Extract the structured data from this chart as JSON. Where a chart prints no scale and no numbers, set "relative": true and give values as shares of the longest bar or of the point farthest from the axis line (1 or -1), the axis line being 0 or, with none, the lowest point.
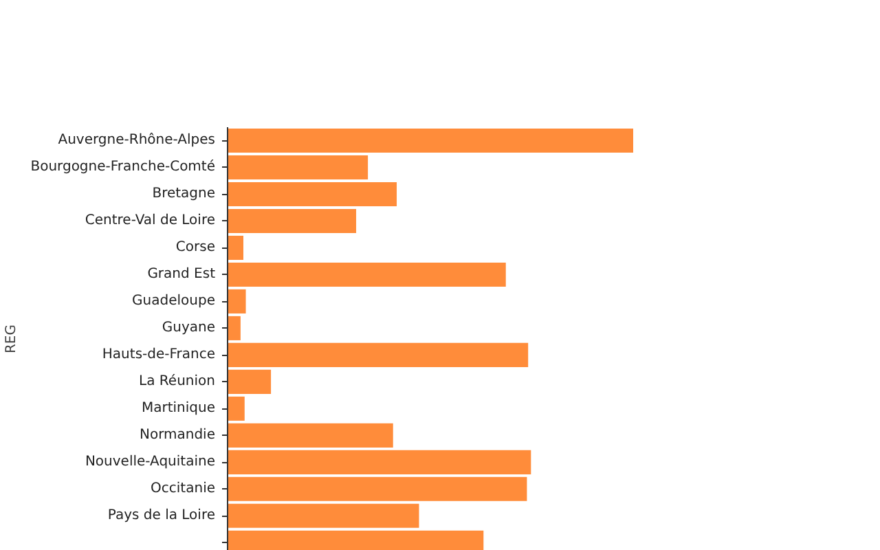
{
  "chart_data": {
    "type": "bar",
    "orientation": "horizontal",
    "relative": true,
    "ylabel": "REG",
    "color": "#ff8c3a",
    "grid": false,
    "categories": [
      "Auvergne-Rhône-Alpes",
      "Bourgogne-Franche-Comté",
      "Bretagne",
      "Centre-Val de Loire",
      "Corse",
      "Grand Est",
      "Guadeloupe",
      "Guyane",
      "Hauts-de-France",
      "La Réunion",
      "Martinique",
      "Normandie",
      "Nouvelle-Aquitaine",
      "Occitanie",
      "Pays de la Loire",
      null
    ],
    "values": [
      1,
      0.346,
      0.417,
      0.317,
      0.039,
      0.686,
      0.045,
      0.032,
      0.741,
      0.107,
      0.042,
      0.408,
      0.748,
      0.738,
      0.472,
      0.631
    ]
  }
}
